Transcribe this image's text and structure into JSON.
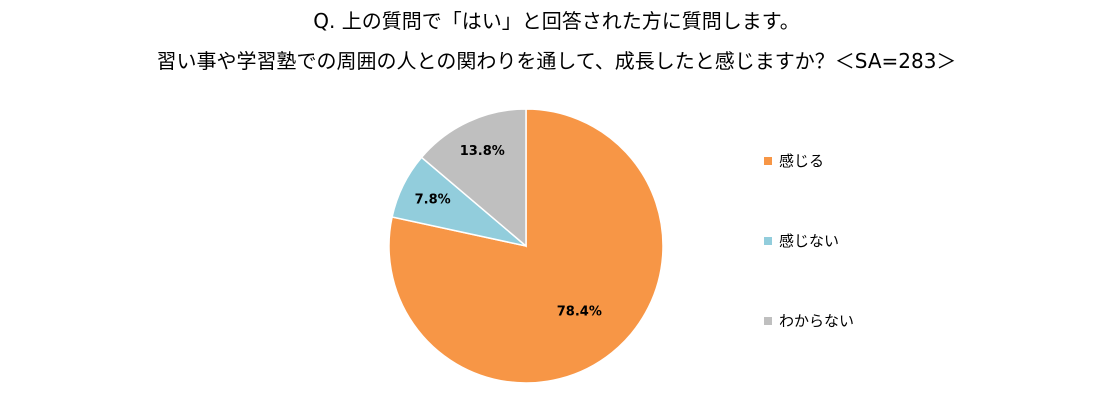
{
  "title": {
    "line1": "Q. 上の質問で「はい」と回答された方に質問します。",
    "line2": "習い事や学習塾での周囲の人との関わりを通して、成長したと感じますか？＜SA=283＞"
  },
  "chart_data": {
    "type": "pie",
    "slices": [
      {
        "name": "感じる",
        "value": 78.4,
        "label": "78.4%",
        "color": "#F79646"
      },
      {
        "name": "感じない",
        "value": 7.8,
        "label": "7.8%",
        "color": "#92CDDC"
      },
      {
        "name": "わからない",
        "value": 13.8,
        "label": "13.8%",
        "color": "#BFBFBF"
      }
    ],
    "start": "12 o'clock",
    "direction": "clockwise",
    "legend": {
      "position": "right",
      "entries": [
        "感じる",
        "感じない",
        "わからない"
      ]
    }
  }
}
